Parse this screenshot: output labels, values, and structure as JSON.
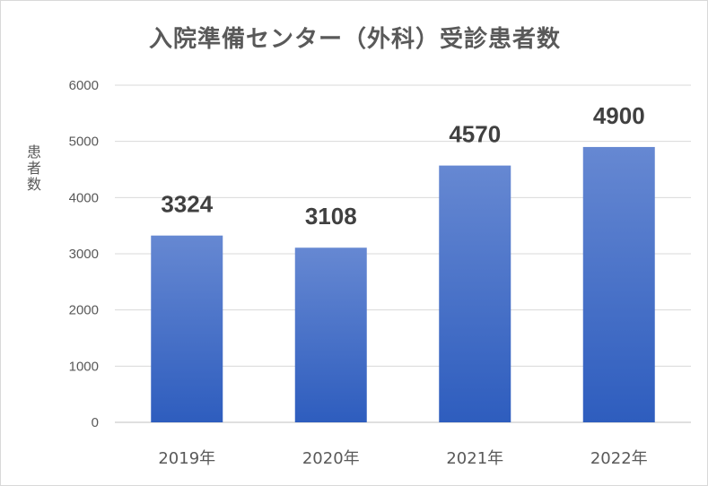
{
  "chart_data": {
    "type": "bar",
    "title": "入院準備センター（外科）受診患者数",
    "ylabel": "患者数",
    "xlabel": "",
    "categories": [
      "2019年",
      "2020年",
      "2021年",
      "2022年"
    ],
    "values": [
      3324,
      3108,
      4570,
      4900
    ],
    "data_labels": [
      "3324",
      "3108",
      "4570",
      "4900"
    ],
    "ylim": [
      0,
      6000
    ],
    "yticks": [
      "0",
      "1000",
      "2000",
      "3000",
      "4000",
      "5000",
      "6000"
    ],
    "grid": true,
    "legend": "none",
    "colors": {
      "bar_top": "#6688D2",
      "bar_bottom": "#2E5DBE",
      "grid": "#d9d9d9",
      "text": "#595959"
    }
  }
}
